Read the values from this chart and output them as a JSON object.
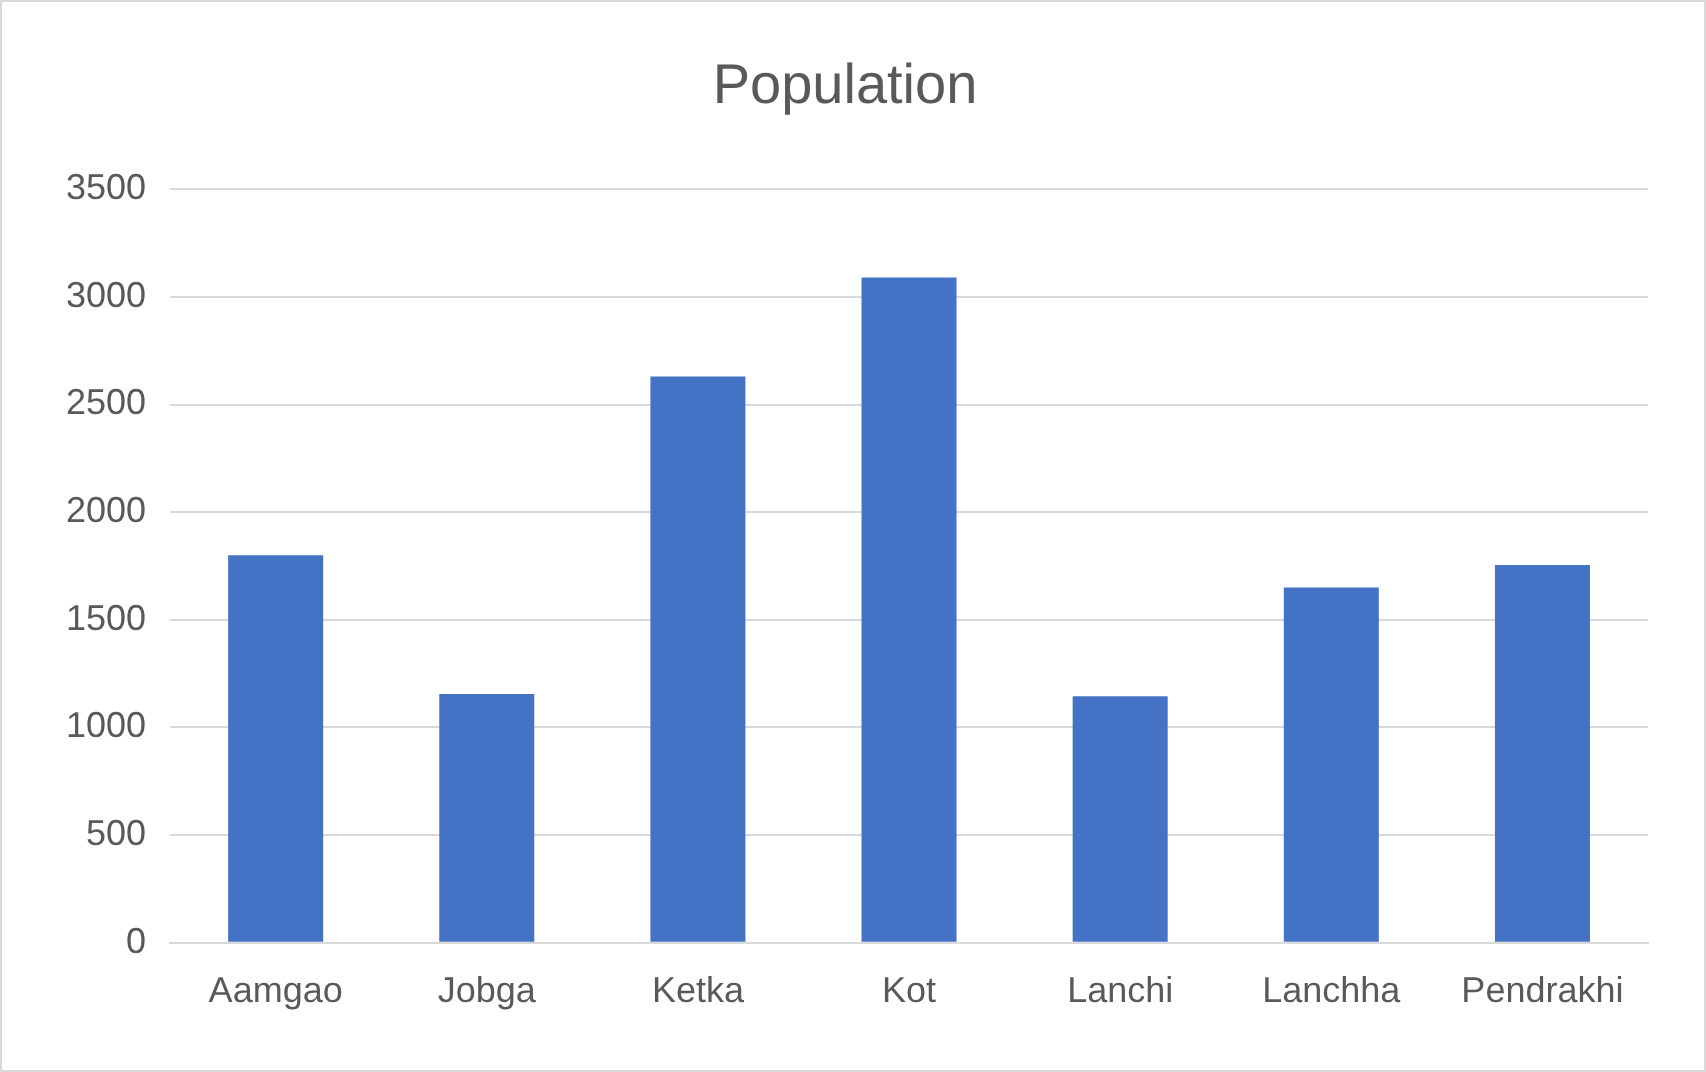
{
  "chart_data": {
    "type": "bar",
    "title": "Population",
    "categories": [
      "Aamgao",
      "Jobga",
      "Ketka",
      "Kot",
      "Lanchi",
      "Lanchha",
      "Pendrakhi"
    ],
    "values": [
      1800,
      1155,
      2630,
      3090,
      1145,
      1650,
      1755
    ],
    "color": "#4472c4",
    "ylim": [
      0,
      3500
    ],
    "yticks": [
      0,
      500,
      1000,
      1500,
      2000,
      2500,
      3000,
      3500
    ],
    "grid": "y"
  }
}
